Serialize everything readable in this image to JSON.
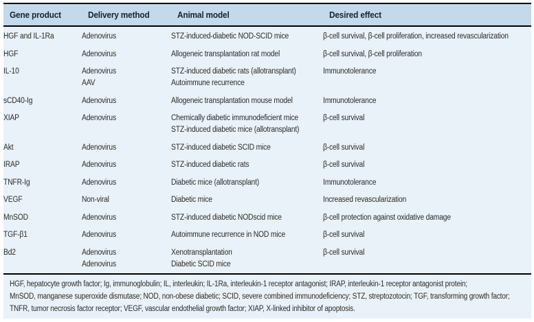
{
  "table": {
    "columns": [
      {
        "label": "Gene product"
      },
      {
        "label": "Delivery method"
      },
      {
        "label": "Animal model"
      },
      {
        "label": "Desired effect"
      }
    ],
    "rows": [
      {
        "gene": "HGF and IL-1Ra",
        "delivery": [
          "Adenovirus"
        ],
        "model": [
          "STZ-induced-diabetic NOD-SCID mice"
        ],
        "effect": "β-cell survival, β-cell proliferation, increased revascularization"
      },
      {
        "gene": "HGF",
        "delivery": [
          "Adenovirus"
        ],
        "model": [
          "Allogeneic transplantation rat model"
        ],
        "effect": "β-cell survival, β-cell proliferation"
      },
      {
        "gene": "IL-10",
        "delivery": [
          "Adenovirus",
          "AAV"
        ],
        "model": [
          "STZ-induced diabetic rats (allotransplant)",
          "Autoimmune recurrence"
        ],
        "effect": "Immunotolerance"
      },
      {
        "gene": "sCD40-Ig",
        "delivery": [
          "Adenovirus"
        ],
        "model": [
          "Allogeneic transplantation mouse model"
        ],
        "effect": "Immunotolerance"
      },
      {
        "gene": "XIAP",
        "delivery": [
          "Adenovirus"
        ],
        "model": [
          "Chemically diabetic immunodeficient mice",
          "STZ-induced diabetic mice (allotransplant)"
        ],
        "effect": "β-cell survival"
      },
      {
        "gene": "Akt",
        "delivery": [
          "Adenovirus"
        ],
        "model": [
          "STZ-induced diabetic SCID mice"
        ],
        "effect": "β-cell survival"
      },
      {
        "gene": "IRAP",
        "delivery": [
          "Adenovirus"
        ],
        "model": [
          "STZ-induced diabetic rats"
        ],
        "effect": "β-cell survival"
      },
      {
        "gene": "TNFR-Ig",
        "delivery": [
          "Adenovirus"
        ],
        "model": [
          "Diabetic mice (allotransplant)"
        ],
        "effect": "Immunotolerance"
      },
      {
        "gene": "VEGF",
        "delivery": [
          "Non-viral"
        ],
        "model": [
          "Diabetic mice"
        ],
        "effect": "Increased revascularization"
      },
      {
        "gene": "MnSOD",
        "delivery": [
          "Adenovirus"
        ],
        "model": [
          "STZ-induced diabetic NODscid mice"
        ],
        "effect": "β-cell protection against oxidative damage"
      },
      {
        "gene": "TGF-β1",
        "delivery": [
          "Adenovirus"
        ],
        "model": [
          "Autoimmune recurrence in NOD mice"
        ],
        "effect": "β-cell survival"
      },
      {
        "gene": "Bd2",
        "delivery": [
          "Adenovirus",
          "Adenovirus"
        ],
        "model": [
          "Xenotransplantation",
          "Diabetic SCID mice"
        ],
        "effect": "β-cell survival"
      }
    ],
    "footnote_lines": [
      "HGF, hepatocyte growth factor; Ig, immunoglobulin; IL, interleukin; IL-1Ra, interleukin-1 receptor antagonist; IRAP, interleukin-1 receptor antagonist protein;",
      "MnSOD, manganese superoxide dismutase; NOD, non-obese diabetic; SCID, severe combined immunodeficiency; STZ, streptozotocin; TGF, transforming growth factor;",
      "TNFR, tumor necrosis factor receptor; VEGF, vascular endothelial growth factor; XIAP, X-linked inhibitor of apoptosis."
    ],
    "colors": {
      "header_bg": "#c4d9ea",
      "body_bg": "#e9f2f8",
      "rule": "#000000",
      "header_text": "#16243a",
      "text": "#2b2b2b"
    }
  }
}
